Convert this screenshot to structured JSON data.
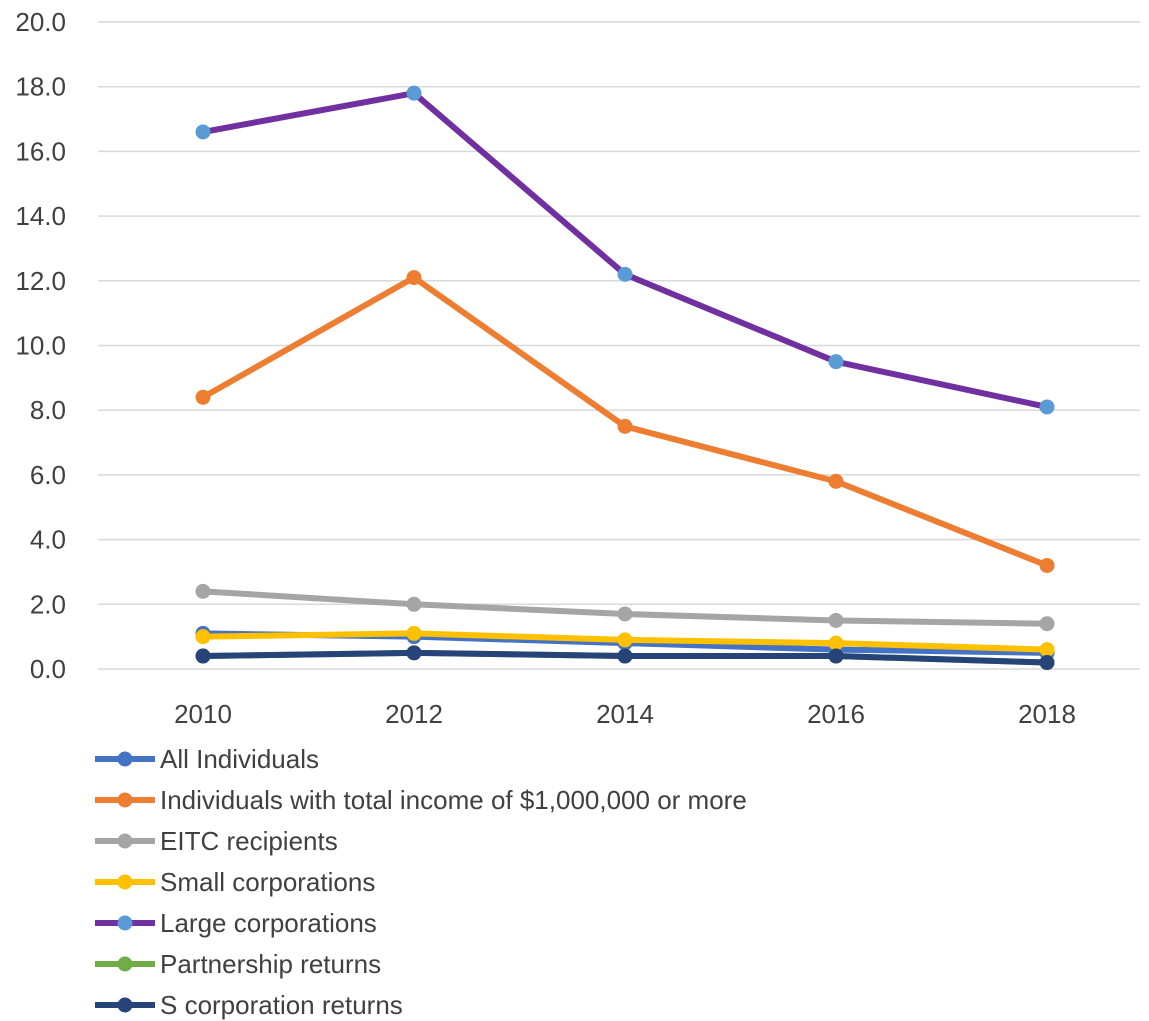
{
  "chart_data": {
    "type": "line",
    "title": "",
    "xlabel": "",
    "ylabel": "",
    "categories": [
      "2010",
      "2012",
      "2014",
      "2016",
      "2018"
    ],
    "ylim": [
      0,
      20
    ],
    "y_ticks": [
      "0.0",
      "2.0",
      "4.0",
      "6.0",
      "8.0",
      "10.0",
      "12.0",
      "14.0",
      "16.0",
      "18.0",
      "20.0"
    ],
    "grid": "horizontal",
    "legend_position": "bottom",
    "series": [
      {
        "name": "All Individuals",
        "color": "#4472C4",
        "marker_color": "#4472C4",
        "values": [
          1.1,
          1.0,
          0.8,
          0.6,
          0.5
        ]
      },
      {
        "name": "Individuals with total income of $1,000,000 or more",
        "color": "#ED7D31",
        "marker_color": "#ED7D31",
        "values": [
          8.4,
          12.1,
          7.5,
          5.8,
          3.2
        ]
      },
      {
        "name": "EITC recipients",
        "color": "#A5A5A5",
        "marker_color": "#A5A5A5",
        "values": [
          2.4,
          2.0,
          1.7,
          1.5,
          1.4
        ]
      },
      {
        "name": "Small corporations",
        "color": "#FFC000",
        "marker_color": "#FFC000",
        "values": [
          1.0,
          1.1,
          0.9,
          0.8,
          0.6
        ]
      },
      {
        "name": "Large corporations",
        "color": "#7030A0",
        "marker_color": "#5B9BD5",
        "values": [
          16.6,
          17.8,
          12.2,
          9.5,
          8.1
        ]
      },
      {
        "name": "Partnership returns",
        "color": "#70AD47",
        "marker_color": "#70AD47",
        "values": [
          0.4,
          0.5,
          0.4,
          0.4,
          0.2
        ]
      },
      {
        "name": "S corporation returns",
        "color": "#264478",
        "marker_color": "#264478",
        "values": [
          0.4,
          0.5,
          0.4,
          0.4,
          0.2
        ]
      }
    ]
  }
}
